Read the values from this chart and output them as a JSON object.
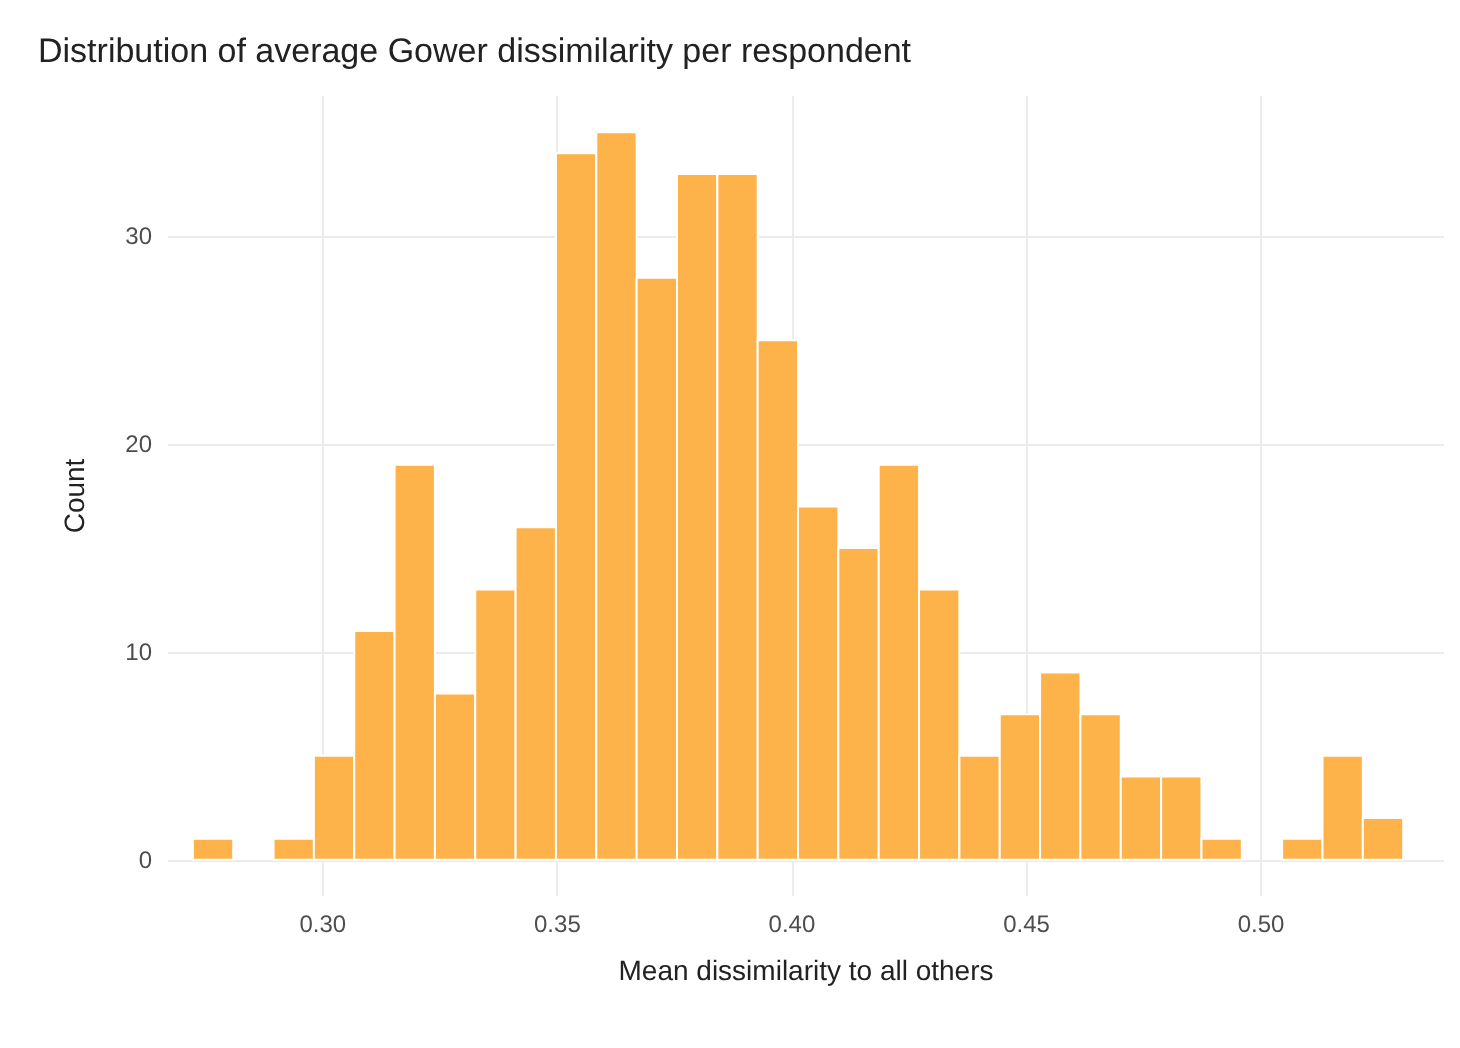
{
  "chart_data": {
    "type": "histogram",
    "title": "Distribution of average Gower dissimilarity per respondent",
    "xlabel": "Mean dissimilarity to all others",
    "ylabel": "Count",
    "bins": [
      0.2723,
      0.2809,
      0.2895,
      0.2981,
      0.3067,
      0.3153,
      0.3239,
      0.3325,
      0.3411,
      0.3497,
      0.3583,
      0.3669,
      0.3755,
      0.3841,
      0.3927,
      0.4013,
      0.4099,
      0.4185,
      0.4271,
      0.4357,
      0.4443,
      0.4529,
      0.4615,
      0.4701,
      0.4787,
      0.4873,
      0.4959,
      0.5045,
      0.5131,
      0.5217,
      0.5303
    ],
    "values": [
      1,
      0,
      1,
      5,
      11,
      19,
      8,
      13,
      16,
      34,
      35,
      28,
      33,
      33,
      25,
      17,
      15,
      19,
      13,
      5,
      7,
      9,
      7,
      4,
      4,
      1,
      0,
      1,
      5,
      2
    ],
    "color": "#fdb34a",
    "xlim": [
      0.267,
      0.539
    ],
    "xticks": [
      {
        "value": 0.3,
        "label": "0.30"
      },
      0.35,
      {
        "value": 0.4,
        "label": "0.40"
      },
      0.45,
      {
        "value": 0.5,
        "label": "0.50"
      }
    ],
    "ylim": [
      -1.75,
      36.75
    ],
    "yticks": [
      0,
      10,
      20,
      30
    ],
    "grid": true
  }
}
